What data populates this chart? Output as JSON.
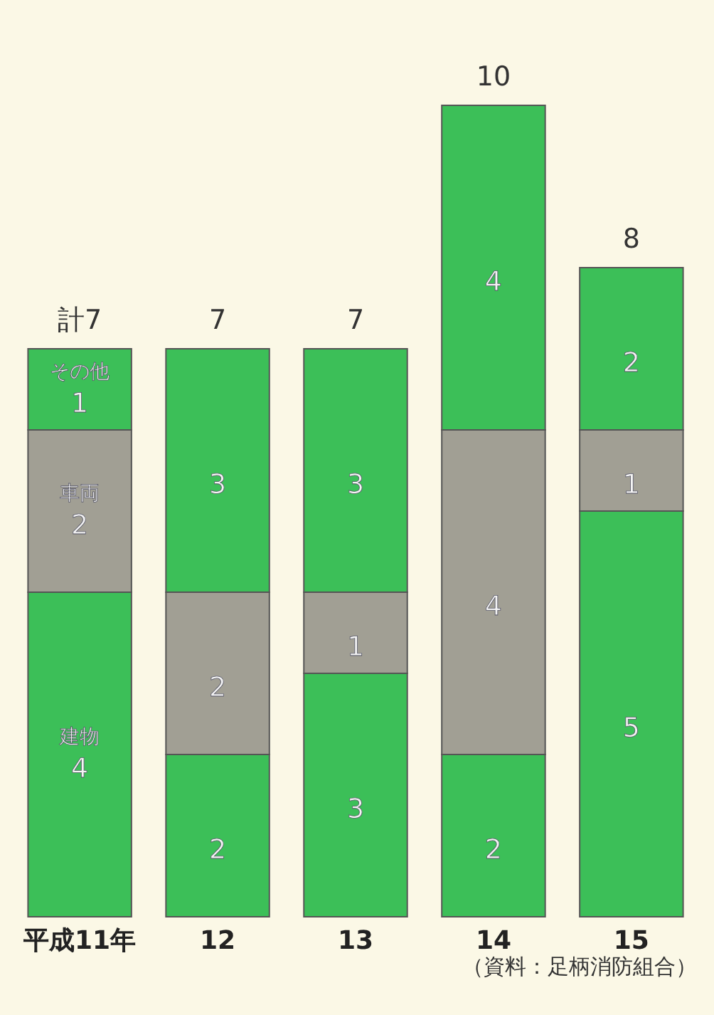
{
  "chart_data": {
    "type": "bar",
    "stacked": true,
    "categories": [
      "平成11年",
      "12",
      "13",
      "14",
      "15"
    ],
    "series": [
      {
        "name": "建物",
        "color": "#3cbf58",
        "values": [
          4,
          2,
          3,
          2,
          5
        ]
      },
      {
        "name": "車両",
        "color": "#a19f94",
        "values": [
          2,
          2,
          1,
          4,
          1
        ]
      },
      {
        "name": "その他",
        "color": "#3cbf58",
        "values": [
          1,
          3,
          3,
          4,
          2
        ]
      }
    ],
    "data_labels": true,
    "totals": [
      "計7",
      "7",
      "7",
      "10",
      "8"
    ],
    "legend": false,
    "grid": false,
    "annotations": [
      "（資料：足柄消防組合）"
    ]
  }
}
